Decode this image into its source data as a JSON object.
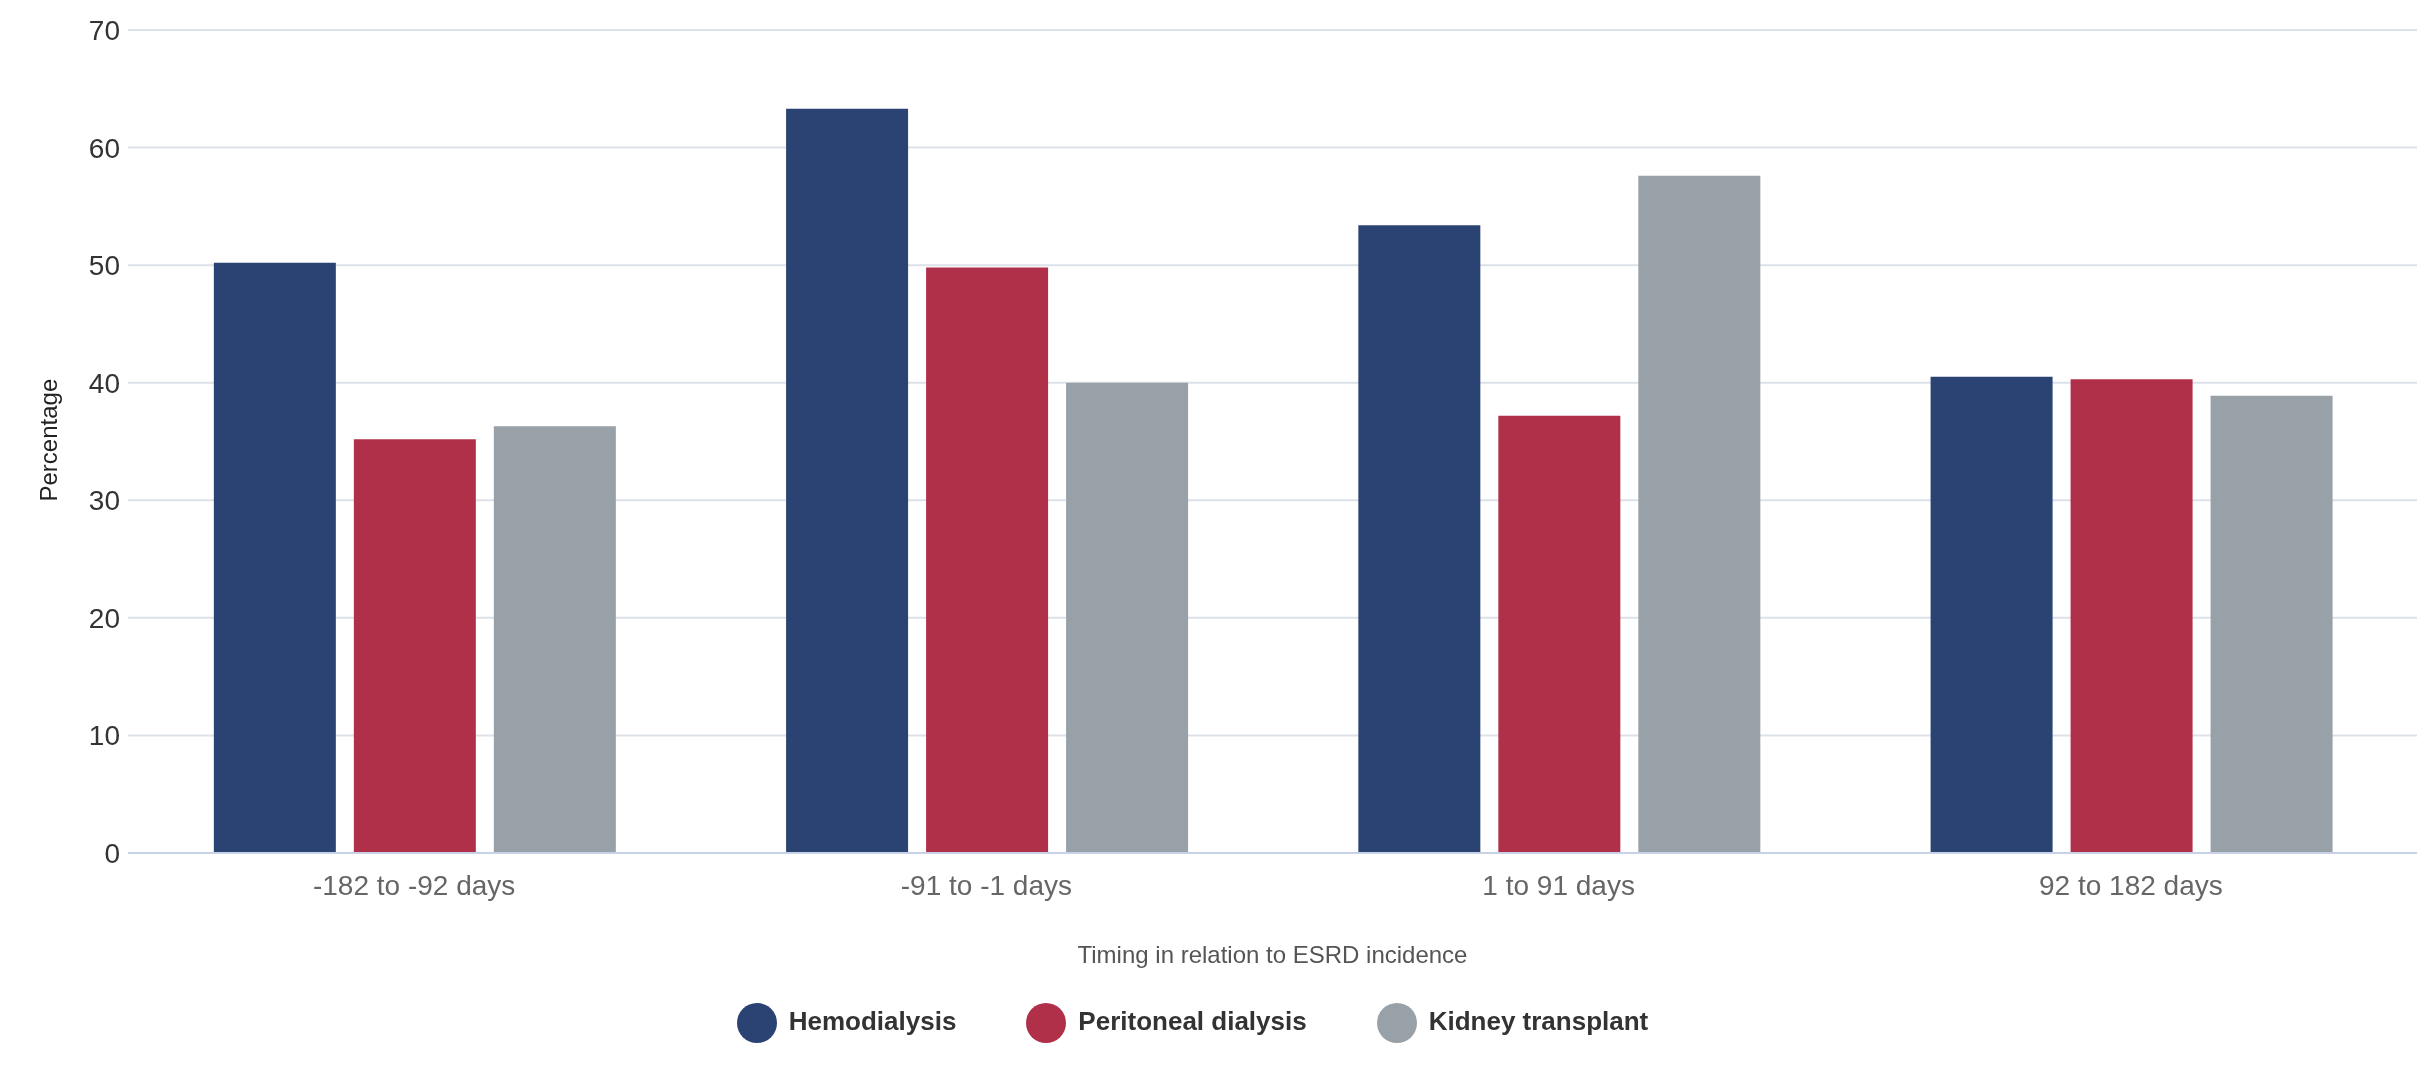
{
  "chart_data": {
    "type": "bar",
    "xlabel": "Timing in relation to ESRD incidence",
    "ylabel": "Percentage",
    "categories": [
      "-182 to -92 days",
      "-91 to -1 days",
      "1 to 91 days",
      "92 to 182 days"
    ],
    "series": [
      {
        "name": "Hemodialysis",
        "color": "#2b4372",
        "values": [
          50.2,
          63.3,
          53.4,
          40.5
        ]
      },
      {
        "name": "Peritoneal dialysis",
        "color": "#b0304a",
        "values": [
          35.2,
          49.8,
          37.2,
          40.3
        ]
      },
      {
        "name": "Kidney transplant",
        "color": "#98a0a8",
        "values": [
          36.3,
          40.0,
          57.6,
          38.9
        ]
      }
    ],
    "ylim": [
      0,
      70
    ],
    "yticks": [
      0,
      10,
      20,
      30,
      40,
      50,
      60,
      70
    ],
    "grid": "y",
    "legend": "bottom"
  }
}
